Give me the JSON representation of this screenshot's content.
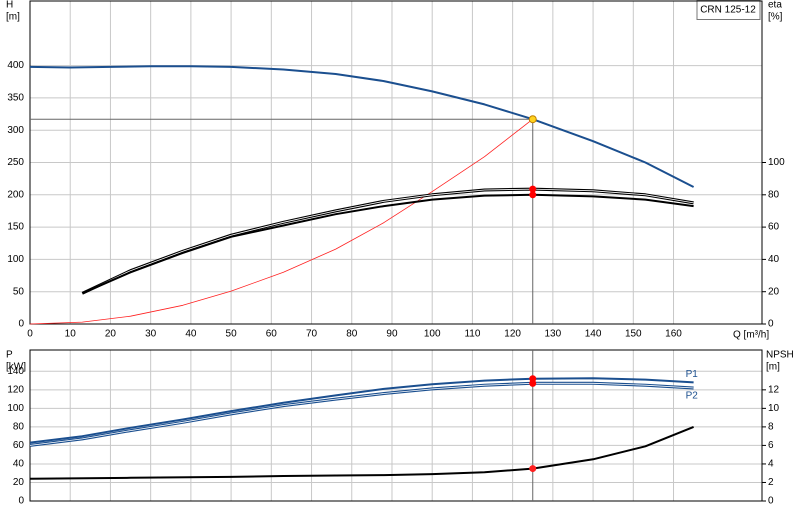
{
  "chart_data": [
    {
      "type": "line",
      "model": "CRN 125-12",
      "ylabel": "H",
      "yunit": "[m]",
      "y2label": "eta",
      "y2unit": "[%]",
      "xlabel": "Q [m³/h]",
      "xlim": [
        0,
        182
      ],
      "xticks": [
        0,
        10,
        20,
        30,
        40,
        50,
        60,
        70,
        80,
        90,
        100,
        110,
        120,
        130,
        140,
        150,
        160
      ],
      "ylim": [
        0,
        500
      ],
      "yticks": [
        0,
        50,
        100,
        150,
        200,
        250,
        300,
        350,
        400
      ],
      "y2lim": [
        0,
        200
      ],
      "y2ticks": [
        0,
        20,
        40,
        60,
        80,
        100
      ],
      "grid": true,
      "duty_point": {
        "x": 125,
        "y": 317
      },
      "series": [
        {
          "color": "#1b4f8f",
          "width": 2,
          "marker": "#ffd21f",
          "x": [
            0,
            10,
            20,
            30,
            40,
            50,
            63,
            76,
            88,
            100,
            113,
            125,
            140,
            153,
            165
          ],
          "values": [
            398,
            397,
            398,
            399,
            399,
            398,
            394,
            387,
            376,
            360,
            340,
            317,
            283,
            250,
            212
          ]
        },
        {
          "color": "#ff2020",
          "width": 0.8,
          "x": [
            0,
            13,
            25,
            38,
            50,
            63,
            76,
            88,
            100,
            113,
            125
          ],
          "values": [
            0,
            3,
            12,
            29,
            51,
            80,
            116,
            157,
            205,
            259,
            317
          ]
        },
        {
          "color": "#000000",
          "width": 3,
          "style": "double",
          "axis": "y2",
          "marker": "#ff0000",
          "x": [
            13,
            25,
            38,
            50,
            63,
            76,
            88,
            100,
            113,
            125,
            140,
            153,
            165
          ],
          "values": [
            19,
            33,
            45,
            55,
            63,
            70,
            76,
            80,
            83,
            83.5,
            82.5,
            80,
            75
          ]
        },
        {
          "color": "#000000",
          "width": 2,
          "axis": "y2",
          "marker": "#ff0000",
          "x": [
            13,
            25,
            38,
            50,
            63,
            76,
            88,
            100,
            113,
            125,
            140,
            153,
            165
          ],
          "values": [
            19,
            32,
            44,
            54,
            61,
            68,
            73,
            77,
            79.5,
            80,
            79,
            77,
            73
          ]
        }
      ]
    },
    {
      "type": "line",
      "ylabel": "P",
      "yunit": "[kW]",
      "y2label": "NPSH",
      "y2unit": "[m]",
      "ylim": [
        0,
        163
      ],
      "yticks": [
        0,
        20,
        40,
        60,
        80,
        100,
        120,
        140
      ],
      "y2lim": [
        0,
        16.3
      ],
      "y2ticks": [
        0,
        2,
        4,
        6,
        8,
        10,
        12
      ],
      "grid": true,
      "duty_point": {
        "x": 125
      },
      "series": [
        {
          "name": "P1",
          "color": "#1b4f8f",
          "width": 2,
          "marker": "#ff0000",
          "x": [
            0,
            13,
            25,
            38,
            50,
            63,
            76,
            88,
            100,
            113,
            125,
            140,
            153,
            165
          ],
          "values": [
            63,
            70,
            79,
            88,
            97,
            106,
            114,
            121,
            126,
            130,
            132,
            132.5,
            131,
            128
          ]
        },
        {
          "name": "P2",
          "color": "#1b4f8f",
          "width": 3,
          "style": "double",
          "marker": "#ff0000",
          "x": [
            0,
            13,
            25,
            38,
            50,
            63,
            76,
            88,
            100,
            113,
            125,
            140,
            153,
            165
          ],
          "values": [
            60,
            67,
            76,
            85,
            94,
            103,
            110,
            116,
            121,
            125,
            127,
            127,
            125,
            122
          ]
        },
        {
          "color": "#000000",
          "width": 2,
          "axis": "y2",
          "marker": "#ff2020",
          "x": [
            0,
            25,
            50,
            63,
            76,
            88,
            100,
            113,
            125,
            140,
            153,
            165
          ],
          "values": [
            2.4,
            2.5,
            2.6,
            2.7,
            2.75,
            2.8,
            2.9,
            3.1,
            3.5,
            4.5,
            5.9,
            8.0
          ]
        }
      ]
    }
  ]
}
